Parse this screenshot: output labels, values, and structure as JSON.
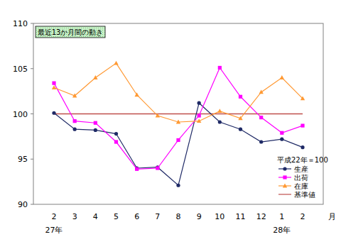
{
  "chart_data": {
    "type": "line",
    "title": "最近13か月間の動き",
    "legend_title": "平成22年＝100",
    "xlabel": "月",
    "categories": [
      "2",
      "3",
      "4",
      "5",
      "6",
      "7",
      "8",
      "9",
      "10",
      "11",
      "12",
      "1",
      "2"
    ],
    "annotations": [
      {
        "text": "27年",
        "at": 0
      },
      {
        "text": "28年",
        "at": 11
      }
    ],
    "series": [
      {
        "name": "生産",
        "color": "#1f2a66",
        "marker": "circle",
        "line_style": "solid",
        "values": [
          100.1,
          98.3,
          98.2,
          97.8,
          94.0,
          94.1,
          92.1,
          101.2,
          99.1,
          98.3,
          96.9,
          97.2,
          96.3
        ]
      },
      {
        "name": "出荷",
        "color": "#ff00ff",
        "marker": "square",
        "line_style": "solid",
        "values": [
          103.4,
          99.2,
          99.0,
          96.9,
          93.9,
          94.0,
          97.1,
          99.8,
          105.1,
          101.9,
          99.6,
          97.9,
          98.7
        ]
      },
      {
        "name": "在庫",
        "color": "#ff9933",
        "marker": "triangle",
        "line_style": "solid",
        "values": [
          102.9,
          102.0,
          104.0,
          105.6,
          102.1,
          99.8,
          99.1,
          99.2,
          100.3,
          99.5,
          102.4,
          104.0,
          101.7
        ]
      },
      {
        "name": "基準値",
        "color": "#c0504d",
        "marker": "none",
        "line_style": "solid",
        "values": [
          100,
          100,
          100,
          100,
          100,
          100,
          100,
          100,
          100,
          100,
          100,
          100,
          100
        ]
      }
    ],
    "ylim": [
      90,
      110
    ],
    "yticks": [
      90,
      95,
      100,
      105,
      110
    ],
    "grid": false,
    "legend": "right"
  }
}
